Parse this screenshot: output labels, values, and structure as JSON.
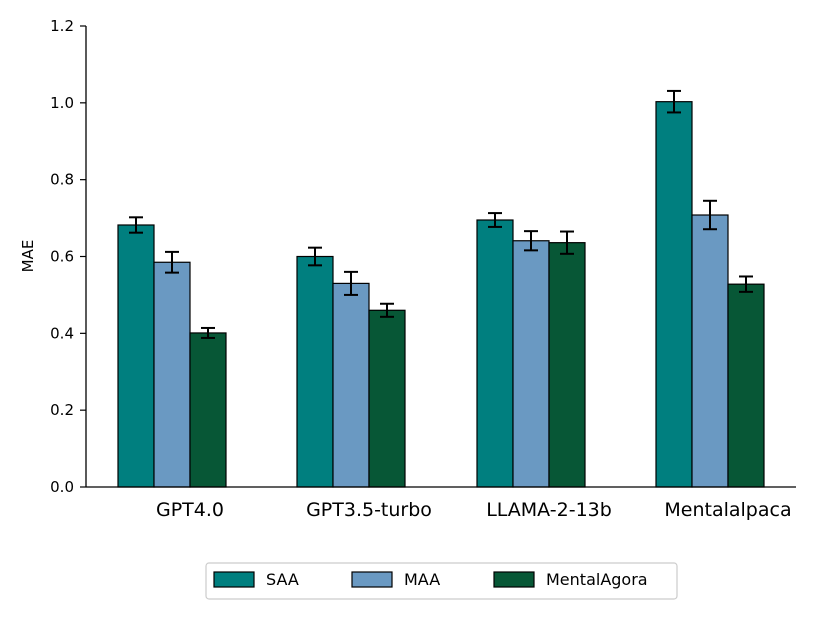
{
  "chart_data": {
    "type": "bar",
    "title": "",
    "xlabel": "",
    "ylabel": "MAE",
    "ylim": [
      0,
      1.2
    ],
    "yticks": [
      "0.0",
      "0.2",
      "0.4",
      "0.6",
      "0.8",
      "1.0",
      "1.2"
    ],
    "categories": [
      "GPT4.0",
      "GPT3.5-turbo",
      "LLAMA-2-13b",
      "Mentalalpaca"
    ],
    "series": [
      {
        "name": "SAA",
        "color": "#007f7f",
        "values": [
          0.682,
          0.6,
          0.695,
          1.003
        ],
        "errors": [
          0.02,
          0.023,
          0.018,
          0.028
        ]
      },
      {
        "name": "MAA",
        "color": "#6a99c2",
        "values": [
          0.585,
          0.53,
          0.641,
          0.708
        ],
        "errors": [
          0.027,
          0.03,
          0.025,
          0.037
        ]
      },
      {
        "name": "MentalAgora",
        "color": "#075736",
        "values": [
          0.401,
          0.46,
          0.636,
          0.528
        ],
        "errors": [
          0.013,
          0.017,
          0.029,
          0.02
        ]
      }
    ],
    "legend_position": "bottom-center",
    "grid": false
  }
}
